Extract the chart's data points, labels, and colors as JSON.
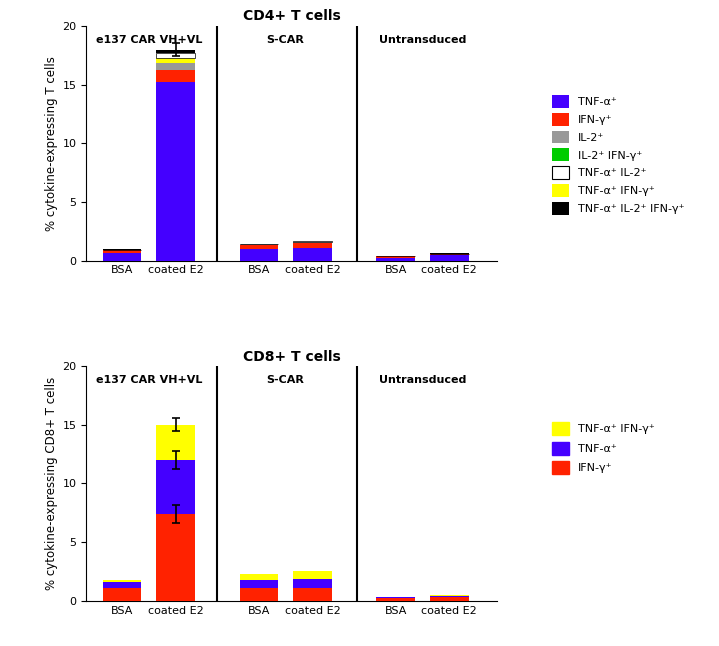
{
  "top_title": "CD4+ T cells",
  "bottom_title": "CD8+ T cells",
  "top_ylabel": "% cytokine-expressing T cells",
  "bottom_ylabel": "% cytokine-expressing CD8+ T cells",
  "ylim": [
    0,
    20
  ],
  "yticks": [
    0,
    5,
    10,
    15,
    20
  ],
  "group_section_labels": [
    "e137 CAR VH+VL",
    "S-CAR",
    "Untransduced"
  ],
  "bar_tick_labels": [
    "BSA",
    "coated E2",
    "BSA",
    "coated E2",
    "BSA",
    "coated E2"
  ],
  "top_bars": {
    "TNF_alpha": [
      0.65,
      15.2,
      1.0,
      1.1,
      0.25,
      0.45
    ],
    "IFN_gamma": [
      0.22,
      1.0,
      0.35,
      0.42,
      0.12,
      0.12
    ],
    "IL_2": [
      0.04,
      0.65,
      0.04,
      0.04,
      0.02,
      0.02
    ],
    "IL2_IFN": [
      0.0,
      0.0,
      0.0,
      0.0,
      0.0,
      0.0
    ],
    "TNF_IFN": [
      0.0,
      0.45,
      0.0,
      0.05,
      0.0,
      0.0
    ],
    "TNF_IL2": [
      0.0,
      0.35,
      0.0,
      0.04,
      0.0,
      0.0
    ],
    "TNF_IL2_IFN": [
      0.04,
      0.3,
      0.04,
      0.04,
      0.03,
      0.03
    ]
  },
  "top_errors": [
    0.0,
    0.55,
    0.0,
    0.0,
    0.0,
    0.0
  ],
  "bottom_bars": {
    "IFN_gamma": [
      1.1,
      7.4,
      1.1,
      1.1,
      0.2,
      0.3
    ],
    "TNF_alpha": [
      0.5,
      4.6,
      0.65,
      0.75,
      0.08,
      0.12
    ],
    "TNF_IFN": [
      0.18,
      3.0,
      0.55,
      0.65,
      0.04,
      0.08
    ]
  },
  "bottom_errors_ifn": [
    0.0,
    0.8,
    0.0,
    0.0,
    0.0,
    0.0
  ],
  "bottom_errors_tnf": [
    0.0,
    0.8,
    0.0,
    0.0,
    0.0,
    0.0
  ],
  "bottom_errors_tot": [
    0.0,
    0.55,
    0.0,
    0.0,
    0.0,
    0.0
  ],
  "colors": {
    "TNF_alpha": "#4400FF",
    "IFN_gamma": "#FF2200",
    "IL_2": "#999999",
    "IL2_IFN": "#00CC00",
    "TNF_IL2": "#FFFFFF",
    "TNF_IFN": "#FFFF00",
    "TNF_IL2_IFN": "#000000"
  },
  "top_legend_labels": [
    "TNF-α⁺",
    "IFN-γ⁺",
    "IL-2⁺",
    "IL-2⁺ IFN-γ⁺",
    "TNF-α⁺ IL-2⁺",
    "TNF-α⁺ IFN-γ⁺",
    "TNF-α⁺ IL-2⁺ IFN-γ⁺"
  ],
  "bottom_legend_labels": [
    "TNF-α⁺ IFN-γ⁺",
    "TNF-α⁺",
    "IFN-γ⁺"
  ]
}
